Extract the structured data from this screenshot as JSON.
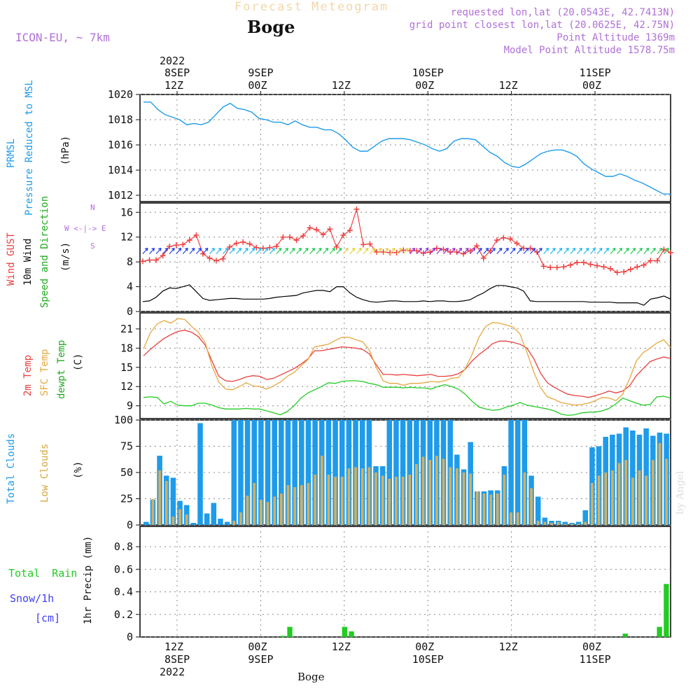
{
  "header": {
    "title": "Forecast Meteogram",
    "location": "Boge",
    "model": "ICON-EU, ~ 7km",
    "requested": "requested lon,lat (20.0543E, 42.7413N)",
    "gridpoint": "grid point closest lon,lat (20.0625E, 42.75N)",
    "point_alt": "Point Altitude 1369m",
    "model_alt": "Model Point Altitude 1578.75m",
    "footer_location": "Boge",
    "watermark": "by Angel"
  },
  "time_axis": {
    "top_year": "2022",
    "ticks": [
      {
        "top": "8SEP",
        "z": "12Z",
        "bottom_day": "8SEP",
        "bottom_year": "2022"
      },
      {
        "top": "9SEP",
        "z": "00Z",
        "bottom_day": "9SEP"
      },
      {
        "top": "",
        "z": "12Z",
        "bottom_day": ""
      },
      {
        "top": "10SEP",
        "z": "00Z",
        "bottom_day": "10SEP"
      },
      {
        "top": "",
        "z": "12Z",
        "bottom_day": ""
      },
      {
        "top": "11SEP",
        "z": "00Z",
        "bottom_day": "11SEP"
      }
    ]
  },
  "panel_labels": {
    "pressure": [
      "PRMSL",
      "Pressure Reduced to MSL",
      "(hPa)"
    ],
    "wind": [
      "Wind GUST",
      "10m Wind",
      "Speed and Direction",
      "(m/s)"
    ],
    "compass": [
      "W <-|-> E",
      "N",
      "S"
    ],
    "temp": [
      "2m Temp",
      "SFC Temp",
      "dewpt Temp",
      "(C)"
    ],
    "clouds": [
      "Total Clouds",
      "Low Clouds",
      "(%)"
    ],
    "precip": [
      "Total Rain",
      "Snow/1h",
      "[cm]",
      "1hr Precip (mm)"
    ]
  },
  "colors": {
    "pressure": "#1e9bea",
    "gust": "#f04040",
    "wind": "#000000",
    "t2m": "#e84040",
    "sfc": "#e6a840",
    "dew": "#22cc22",
    "total_cloud": "#1e9bea",
    "low_cloud": "#d4b060",
    "rain": "#22cc22",
    "snow": "#4040ee"
  },
  "chart_data": [
    {
      "type": "line",
      "name": "pressure",
      "ylim": [
        1011.5,
        1020
      ],
      "yticks": [
        "1012",
        "1014",
        "1016",
        "1018",
        "1020"
      ],
      "x_hours": [
        0,
        1,
        2,
        3,
        4,
        5,
        6,
        7,
        8,
        9,
        10,
        11,
        12,
        13,
        14,
        15,
        16,
        17,
        18,
        19,
        20,
        21,
        22,
        23,
        24,
        25,
        26,
        27,
        28,
        29,
        30,
        31,
        32,
        33,
        34,
        35,
        36,
        37,
        38,
        39,
        40,
        41,
        42,
        43,
        44,
        45,
        46,
        47,
        48,
        49,
        50,
        51,
        52,
        53,
        54,
        55,
        56,
        57,
        58,
        59,
        60,
        61,
        62,
        63,
        64,
        65,
        66,
        67,
        68,
        69,
        70,
        71,
        72,
        73,
        74,
        75,
        76
      ],
      "series": [
        {
          "name": "PRMSL",
          "values": [
            1019.4,
            1019.4,
            1018.8,
            1018.4,
            1018.2,
            1018.0,
            1017.6,
            1017.7,
            1017.6,
            1017.8,
            1018.4,
            1019.0,
            1019.3,
            1018.9,
            1018.8,
            1018.6,
            1018.1,
            1018.0,
            1017.8,
            1017.8,
            1017.6,
            1017.9,
            1017.6,
            1017.4,
            1017.4,
            1017.2,
            1017.2,
            1016.9,
            1016.4,
            1015.8,
            1015.5,
            1015.5,
            1015.9,
            1016.3,
            1016.5,
            1016.5,
            1016.5,
            1016.4,
            1016.2,
            1016.0,
            1015.7,
            1015.5,
            1015.7,
            1016.3,
            1016.5,
            1016.5,
            1016.4,
            1015.9,
            1015.4,
            1015.1,
            1014.6,
            1014.3,
            1014.2,
            1014.5,
            1014.9,
            1015.3,
            1015.5,
            1015.6,
            1015.6,
            1015.4,
            1015.1,
            1014.5,
            1014.1,
            1013.8,
            1013.5,
            1013.5,
            1013.7,
            1013.5,
            1013.2,
            1013.0,
            1012.7,
            1012.4,
            1012.1,
            1012.1
          ]
        }
      ]
    },
    {
      "type": "line",
      "name": "wind",
      "ylim": [
        0,
        17.5
      ],
      "yticks": [
        "0",
        "4",
        "8",
        "12",
        "16"
      ],
      "series": [
        {
          "name": "Wind GUST",
          "values": [
            8.1,
            8.3,
            8.3,
            9.0,
            10.5,
            10.7,
            10.8,
            11.5,
            12.3,
            9.3,
            8.6,
            8.2,
            8.5,
            10.4,
            11.0,
            11.2,
            10.9,
            10.3,
            10.2,
            10.3,
            10.5,
            12.0,
            12.0,
            11.5,
            12.2,
            13.5,
            13.2,
            12.4,
            13.3,
            10.4,
            12.3,
            13.1,
            16.5,
            10.8,
            10.9,
            9.6,
            9.6,
            9.5,
            9.5,
            9.9,
            9.8,
            9.8,
            9.4,
            9.6,
            10.2,
            10.0,
            9.6,
            9.6,
            9.3,
            9.8,
            10.6,
            8.6,
            9.8,
            11.5,
            11.9,
            11.7,
            11.0,
            10.2,
            10.2,
            9.6,
            7.3,
            7.1,
            7.1,
            7.2,
            7.5,
            7.9,
            7.9,
            7.6,
            7.4,
            7.2,
            6.9,
            6.3,
            6.4,
            6.8,
            7.2,
            7.5,
            8.2,
            8.2,
            10.0,
            9.5
          ]
        },
        {
          "name": "10m Wind",
          "values": [
            1.6,
            1.7,
            2.3,
            3.3,
            3.8,
            3.7,
            4.0,
            4.3,
            3.2,
            2.1,
            1.8,
            1.9,
            2.0,
            2.1,
            2.1,
            2.0,
            2.0,
            2.0,
            2.0,
            2.1,
            2.3,
            2.4,
            2.5,
            2.6,
            3.0,
            3.2,
            3.4,
            3.4,
            3.2,
            4.0,
            4.0,
            3.0,
            2.3,
            1.9,
            1.6,
            1.5,
            1.6,
            1.7,
            1.7,
            1.6,
            1.6,
            1.6,
            1.7,
            1.6,
            1.7,
            1.7,
            1.6,
            1.6,
            1.7,
            1.9,
            2.5,
            3.0,
            3.7,
            4.2,
            4.2,
            4.0,
            3.8,
            3.3,
            1.7,
            1.6,
            1.6,
            1.6,
            1.6,
            1.6,
            1.6,
            1.6,
            1.6,
            1.5,
            1.5,
            1.5,
            1.5,
            1.4,
            1.4,
            1.4,
            1.4,
            1.0,
            2.0,
            2.2,
            2.5,
            2.0
          ]
        }
      ]
    },
    {
      "type": "line",
      "name": "temperature",
      "ylim": [
        7,
        23.5
      ],
      "yticks": [
        "9",
        "12",
        "15",
        "18",
        "21"
      ],
      "series": [
        {
          "name": "2m Temp",
          "values": [
            16.8,
            17.8,
            18.7,
            19.5,
            20.1,
            20.6,
            20.8,
            20.5,
            19.8,
            18.5,
            16.0,
            13.6,
            12.9,
            12.8,
            13.1,
            13.5,
            13.7,
            13.6,
            13.1,
            13.3,
            13.8,
            14.3,
            14.8,
            15.5,
            16.3,
            17.6,
            17.6,
            17.8,
            18.0,
            18.2,
            18.1,
            18.0,
            17.8,
            17.1,
            15.4,
            13.9,
            13.9,
            13.8,
            13.9,
            13.8,
            13.7,
            13.8,
            13.9,
            13.6,
            13.6,
            13.7,
            14.0,
            14.7,
            16.0,
            17.0,
            17.8,
            18.7,
            19.1,
            19.1,
            18.9,
            18.6,
            18.0,
            16.4,
            14.1,
            12.6,
            11.9,
            11.3,
            10.8,
            10.6,
            10.5,
            10.3,
            10.6,
            10.9,
            11.3,
            11.0,
            11.3,
            12.1,
            13.7,
            14.8,
            15.9,
            16.3,
            16.6,
            16.4
          ]
        },
        {
          "name": "SFC Temp",
          "values": [
            17.9,
            20.4,
            21.8,
            22.3,
            21.9,
            22.6,
            22.5,
            21.4,
            20.5,
            18.9,
            15.2,
            12.7,
            11.6,
            11.5,
            12.0,
            12.6,
            12.1,
            12.0,
            11.6,
            12.1,
            12.7,
            13.6,
            14.2,
            15.2,
            16.2,
            18.2,
            18.4,
            18.6,
            19.2,
            19.7,
            19.7,
            19.3,
            19.0,
            17.7,
            15.0,
            12.9,
            12.5,
            12.5,
            12.2,
            12.5,
            12.5,
            12.6,
            12.8,
            12.7,
            12.9,
            13.3,
            13.4,
            14.8,
            17.0,
            19.7,
            21.4,
            22.0,
            21.9,
            21.6,
            21.3,
            20.2,
            17.4,
            14.3,
            11.8,
            10.4,
            10.0,
            9.5,
            9.3,
            9.1,
            9.2,
            9.4,
            9.8,
            10.3,
            10.2,
            9.8,
            10.8,
            13.2,
            16.0,
            17.3,
            18.0,
            18.8,
            19.3,
            18.1
          ]
        },
        {
          "name": "dewpt Temp",
          "values": [
            10.3,
            10.4,
            10.3,
            9.3,
            9.7,
            9.1,
            9.0,
            9.0,
            9.4,
            9.4,
            9.1,
            8.7,
            8.5,
            8.5,
            8.5,
            8.6,
            8.5,
            8.5,
            8.2,
            7.9,
            7.6,
            8.1,
            9.0,
            10.2,
            11.0,
            11.5,
            12.0,
            12.6,
            12.5,
            12.8,
            12.9,
            12.9,
            12.8,
            12.5,
            12.3,
            11.9,
            11.9,
            11.9,
            11.8,
            11.9,
            11.8,
            11.8,
            11.6,
            12.0,
            12.3,
            12.0,
            11.6,
            10.8,
            9.7,
            8.8,
            8.5,
            8.3,
            8.4,
            8.8,
            9.1,
            9.5,
            9.1,
            8.9,
            8.7,
            8.5,
            8.2,
            7.7,
            7.5,
            7.6,
            7.9,
            8.0,
            8.0,
            8.2,
            8.6,
            9.3,
            10.2,
            9.8,
            9.4,
            9.1,
            9.2,
            10.4,
            10.5,
            10.2
          ]
        }
      ]
    },
    {
      "type": "bar",
      "name": "clouds",
      "ylim": [
        0,
        100
      ],
      "yticks": [
        "0",
        "25",
        "50",
        "75",
        "100"
      ],
      "series": [
        {
          "name": "Total Clouds",
          "values": [
            3,
            24,
            66,
            47,
            45,
            23,
            19,
            2,
            97,
            11,
            21,
            6,
            3,
            100,
            100,
            100,
            100,
            100,
            100,
            100,
            100,
            100,
            100,
            100,
            100,
            100,
            100,
            100,
            100,
            100,
            100,
            100,
            100,
            100,
            56,
            56,
            100,
            100,
            100,
            100,
            100,
            100,
            100,
            100,
            100,
            100,
            67,
            53,
            79,
            32,
            32,
            33,
            33,
            56,
            100,
            100,
            100,
            47,
            27,
            7,
            4,
            4,
            3,
            2,
            3,
            14,
            74,
            75,
            84,
            86,
            87,
            93,
            90,
            86,
            92,
            85,
            88,
            87
          ]
        },
        {
          "name": "Low Clouds",
          "values": [
            0,
            25,
            52,
            42,
            8,
            15,
            10,
            0,
            0,
            0,
            0,
            0,
            0,
            4,
            12,
            28,
            40,
            24,
            22,
            27,
            30,
            38,
            36,
            38,
            40,
            48,
            66,
            48,
            46,
            46,
            54,
            55,
            54,
            55,
            50,
            47,
            44,
            46,
            46,
            48,
            58,
            65,
            62,
            66,
            63,
            55,
            54,
            50,
            49,
            32,
            30,
            29,
            30,
            48,
            12,
            12,
            50,
            35,
            4,
            3,
            2,
            3,
            1,
            1,
            1,
            3,
            40,
            47,
            50,
            52,
            59,
            62,
            45,
            52,
            47,
            62,
            78,
            63
          ]
        }
      ]
    },
    {
      "type": "bar",
      "name": "precipitation",
      "ylim": [
        0,
        0.98
      ],
      "yticks": [
        "0",
        "0.2",
        "0.4",
        "0.6",
        "0.8"
      ],
      "series": [
        {
          "name": "Total Rain",
          "values": [
            0,
            0,
            0,
            0,
            0,
            0,
            0,
            0,
            0,
            0,
            0,
            0,
            0,
            0,
            0,
            0,
            0,
            0,
            0,
            0,
            0.01,
            0.09,
            0,
            0,
            0,
            0,
            0,
            0,
            0,
            0.09,
            0.05,
            0,
            0,
            0,
            0,
            0,
            0,
            0,
            0,
            0,
            0,
            0,
            0,
            0,
            0,
            0,
            0,
            0,
            0,
            0,
            0,
            0,
            0,
            0,
            0,
            0,
            0,
            0,
            0,
            0,
            0,
            0,
            0,
            0,
            0,
            0,
            0,
            0,
            0,
            0,
            0.03,
            0,
            0,
            0,
            0,
            0.09,
            0.47
          ]
        }
      ]
    }
  ]
}
